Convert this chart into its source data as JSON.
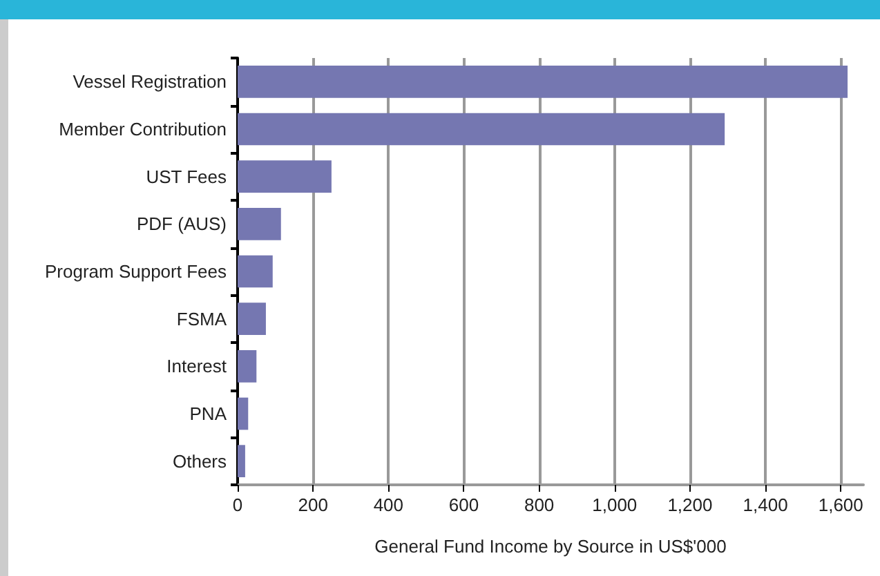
{
  "chart_data": {
    "type": "bar",
    "orientation": "horizontal",
    "xlabel": "General Fund Income by Source in US$'000",
    "categories": [
      "Vessel Registration",
      "Member Contribution",
      "UST Fees",
      "PDF (AUS)",
      "Program Support Fees",
      "FSMA",
      "Interest",
      "PNA",
      "Others"
    ],
    "values": [
      1618,
      1292,
      249,
      115,
      93,
      75,
      50,
      28,
      20
    ],
    "color": "#7577b1",
    "xlim": [
      0,
      1660
    ],
    "xticks": [
      0,
      200,
      400,
      600,
      800,
      {
        "value": 1000,
        "label": "1,000"
      },
      {
        "value": 1200,
        "label": "1,200"
      },
      {
        "value": 1400,
        "label": "1,400"
      },
      {
        "value": 1600,
        "label": "1,600"
      }
    ],
    "grid": "x"
  }
}
